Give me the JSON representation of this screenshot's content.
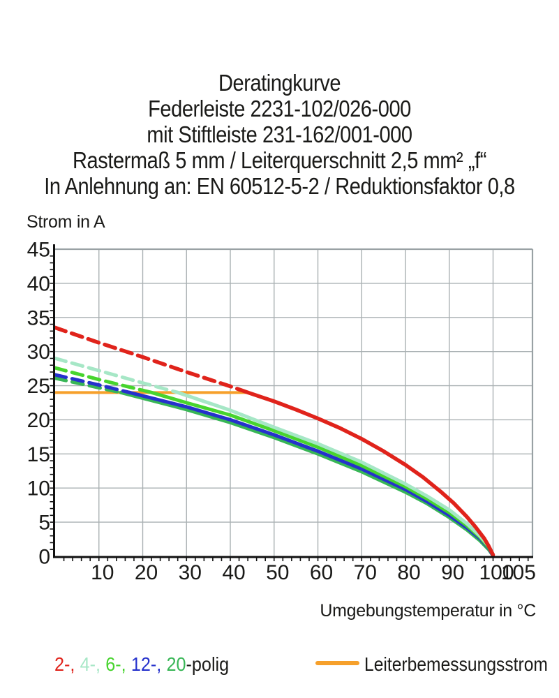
{
  "title": {
    "lines": [
      "Deratingkurve",
      "Federleiste 2231-102/026-000",
      "mit Stiftleiste 231-162/001-000",
      "Rastermaß 5 mm / Leiterquerschnitt 2,5 mm² „f“",
      "In Anlehnung an: EN 60512-5-2 / Reduktionsfaktor 0,8"
    ]
  },
  "chart_data": {
    "type": "line",
    "title": "Deratingkurve",
    "ylabel": "Strom in A",
    "xlabel": "Umgebungstemperatur in °C",
    "xlim": [
      0,
      109
    ],
    "ylim": [
      0,
      45
    ],
    "x_ticks": [
      10,
      20,
      30,
      40,
      50,
      60,
      70,
      80,
      90,
      100,
      105
    ],
    "y_ticks": [
      0,
      5,
      10,
      15,
      20,
      25,
      30,
      35,
      40,
      45
    ],
    "grid": true,
    "legend_position": "bottom",
    "colors": {
      "grid": "#aab1b3",
      "border": "#99a1a4",
      "axis": "#111111",
      "text": "#1a1a18"
    },
    "limit_line": {
      "name": "Leiterbemessungsstrom",
      "value": 24,
      "x_range": [
        0,
        44
      ],
      "color": "#f6a02b"
    },
    "series": [
      {
        "name": "2-polig",
        "color": "#e0231b",
        "solid_from": 44,
        "points": [
          [
            0,
            33.5
          ],
          [
            10,
            31.3
          ],
          [
            20,
            29.2
          ],
          [
            30,
            27.0
          ],
          [
            40,
            24.9
          ],
          [
            44,
            24.0
          ],
          [
            50,
            22.7
          ],
          [
            55,
            21.5
          ],
          [
            60,
            20.2
          ],
          [
            65,
            18.8
          ],
          [
            70,
            17.2
          ],
          [
            75,
            15.4
          ],
          [
            80,
            13.4
          ],
          [
            84,
            11.6
          ],
          [
            88,
            9.5
          ],
          [
            91,
            7.8
          ],
          [
            94,
            5.8
          ],
          [
            96,
            4.3
          ],
          [
            98,
            2.6
          ],
          [
            99,
            1.5
          ],
          [
            100,
            0.2
          ]
        ]
      },
      {
        "name": "4-polig",
        "color": "#a6e7c6",
        "solid_from": 28,
        "points": [
          [
            0,
            29.0
          ],
          [
            10,
            27.2
          ],
          [
            20,
            25.4
          ],
          [
            28,
            24.0
          ],
          [
            40,
            21.4
          ],
          [
            50,
            18.9
          ],
          [
            60,
            16.5
          ],
          [
            70,
            13.8
          ],
          [
            80,
            10.6
          ],
          [
            85,
            8.8
          ],
          [
            90,
            6.8
          ],
          [
            94,
            4.8
          ],
          [
            97,
            3.0
          ],
          [
            99,
            1.5
          ],
          [
            100,
            0.3
          ]
        ]
      },
      {
        "name": "6-polig",
        "color": "#47d42e",
        "solid_from": 22,
        "points": [
          [
            0,
            27.6
          ],
          [
            10,
            25.9
          ],
          [
            22,
            24.0
          ],
          [
            30,
            22.5
          ],
          [
            40,
            20.7
          ],
          [
            50,
            18.4
          ],
          [
            60,
            16.0
          ],
          [
            70,
            13.3
          ],
          [
            80,
            10.2
          ],
          [
            85,
            8.4
          ],
          [
            90,
            6.4
          ],
          [
            94,
            4.5
          ],
          [
            97,
            2.8
          ],
          [
            99,
            1.3
          ],
          [
            100,
            0.2
          ]
        ]
      },
      {
        "name": "12-polig",
        "color": "#2531cc",
        "solid_from": 17,
        "points": [
          [
            0,
            26.6
          ],
          [
            10,
            25.1
          ],
          [
            17,
            24.0
          ],
          [
            30,
            21.9
          ],
          [
            40,
            20.0
          ],
          [
            50,
            17.8
          ],
          [
            60,
            15.4
          ],
          [
            70,
            12.8
          ],
          [
            80,
            9.8
          ],
          [
            85,
            8.0
          ],
          [
            90,
            6.0
          ],
          [
            94,
            4.2
          ],
          [
            97,
            2.6
          ],
          [
            99,
            1.2
          ],
          [
            100,
            0.1
          ]
        ]
      },
      {
        "name": "20-polig",
        "color": "#38b656",
        "solid_from": 15,
        "points": [
          [
            0,
            26.1
          ],
          [
            10,
            24.7
          ],
          [
            15,
            24.0
          ],
          [
            30,
            21.5
          ],
          [
            40,
            19.6
          ],
          [
            50,
            17.4
          ],
          [
            60,
            15.0
          ],
          [
            70,
            12.4
          ],
          [
            80,
            9.4
          ],
          [
            85,
            7.7
          ],
          [
            90,
            5.7
          ],
          [
            94,
            3.9
          ],
          [
            97,
            2.3
          ],
          [
            99,
            1.0
          ],
          [
            100,
            0.1
          ]
        ]
      }
    ]
  },
  "legend": {
    "poles": [
      {
        "text": "2-,",
        "color": "#e0231b"
      },
      {
        "text": "4-,",
        "color": "#a6e7c6"
      },
      {
        "text": "6-,",
        "color": "#47d42e"
      },
      {
        "text": "12-,",
        "color": "#2531cc"
      },
      {
        "text": "20",
        "color": "#38b656"
      }
    ],
    "poles_suffix": "-polig",
    "limit_label": "Leiterbemessungsstrom",
    "limit_color": "#f6a02b"
  }
}
